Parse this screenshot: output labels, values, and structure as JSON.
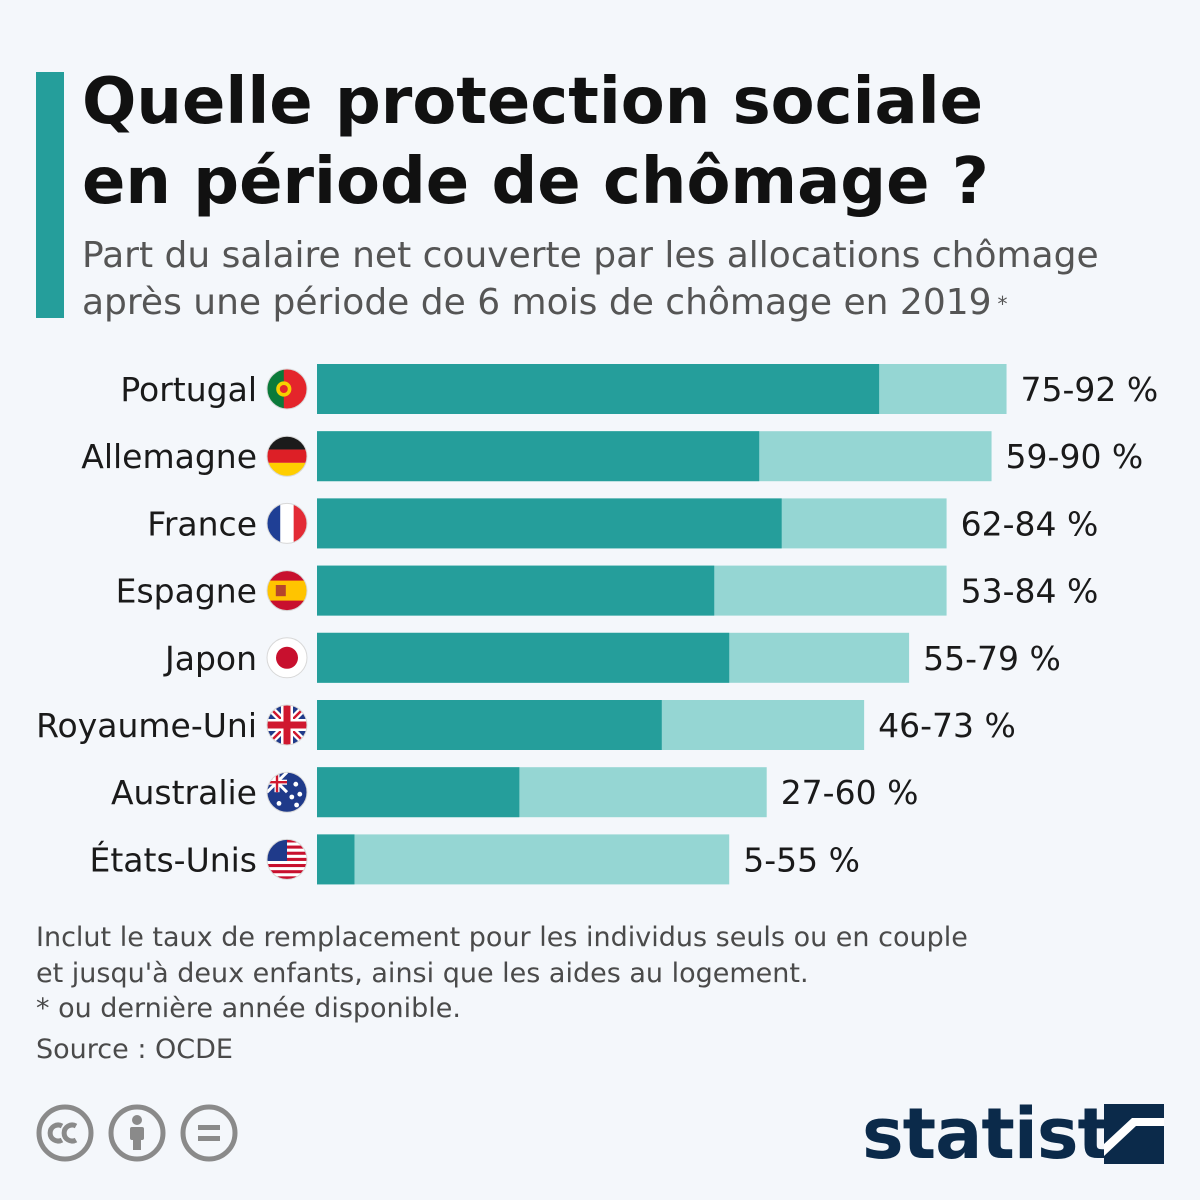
{
  "header": {
    "title_line1": "Quelle protection sociale",
    "title_line2": "en période de chômage ?",
    "subtitle_line1": "Part du salaire net couverte par les allocations chômage",
    "subtitle_line2": "après une période de 6 mois de chômage en 2019",
    "subtitle_mark": "*"
  },
  "chart_data": {
    "type": "bar",
    "orientation": "horizontal",
    "stacked_range": true,
    "categories": [
      "Portugal",
      "Allemagne",
      "France",
      "Espagne",
      "Japon",
      "Royaume-Uni",
      "Australie",
      "États-Unis"
    ],
    "flag_icons": [
      "portugal-flag-icon",
      "germany-flag-icon",
      "france-flag-icon",
      "spain-flag-icon",
      "japan-flag-icon",
      "uk-flag-icon",
      "australia-flag-icon",
      "usa-flag-icon"
    ],
    "series": [
      {
        "values": [
          75,
          59,
          62,
          53,
          55,
          46,
          27,
          5
        ]
      },
      {
        "values": [
          92,
          90,
          84,
          84,
          79,
          73,
          60,
          55
        ]
      }
    ],
    "data_labels": [
      "75-92 %",
      "59-90 %",
      "62-84 %",
      "53-84 %",
      "55-79 %",
      "46-73 %",
      "27-60 %",
      "5-55 %"
    ],
    "xlim": [
      0,
      100
    ],
    "grid": false,
    "legend": "none",
    "colors": {
      "low": "#259e9b",
      "high": "#95d6d3"
    }
  },
  "footer": {
    "note_line1": "Inclut le taux de remplacement pour les individus seuls ou en couple",
    "note_line2": "et jusqu'à deux enfants, ainsi que les aides au logement.",
    "note_line3": "* ou dernière année disponible.",
    "source": "Source : OCDE",
    "license_icons": [
      "cc-icon",
      "attribution-icon",
      "no-derivatives-icon"
    ],
    "brand": "statista"
  },
  "colors": {
    "accent": "#259e9b",
    "background": "#f4f7fb",
    "brand": "#0b2a4a"
  }
}
